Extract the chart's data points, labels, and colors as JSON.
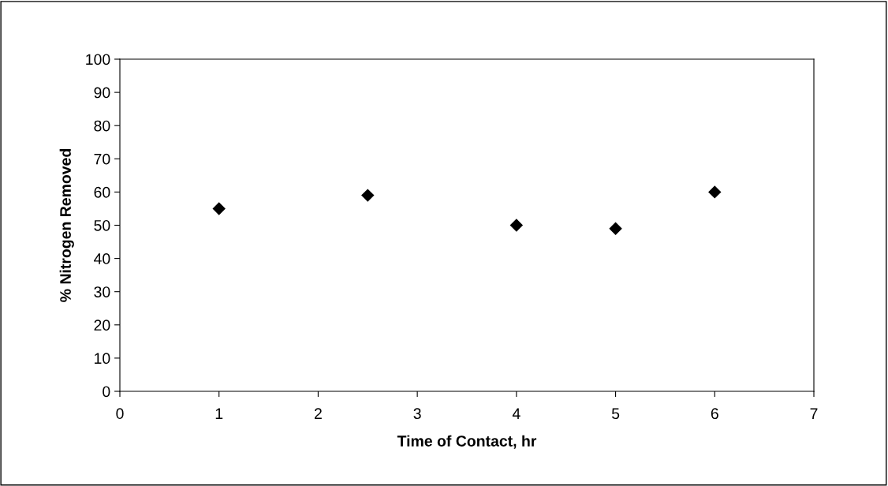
{
  "chart_data": {
    "type": "scatter",
    "xlabel": "Time of Contact, hr",
    "ylabel": "% Nitrogen Removed",
    "x": [
      1,
      2.5,
      4,
      5,
      6
    ],
    "series": [
      {
        "color": "#000000",
        "values": [
          55,
          59,
          50,
          49,
          60
        ]
      }
    ],
    "marker": "diamond",
    "xlim": [
      0,
      7
    ],
    "xticks": [
      0,
      1,
      2,
      3,
      4,
      5,
      6,
      7
    ],
    "ylim": [
      0,
      100
    ],
    "yticks": [
      0,
      10,
      20,
      30,
      40,
      50,
      60,
      70,
      80,
      90,
      100
    ],
    "grid": false,
    "legend": false
  }
}
